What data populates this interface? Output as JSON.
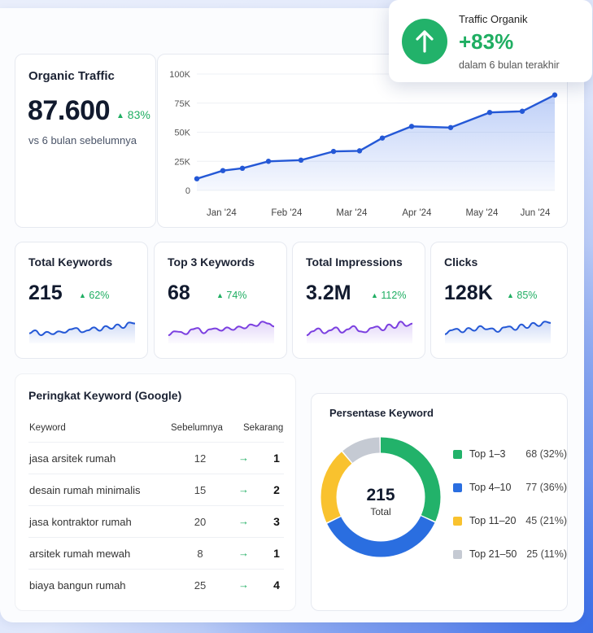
{
  "colors": {
    "accent": "#2458d6",
    "green": "#1fae62",
    "purple": "#7b3fe0",
    "yellow": "#f9c22e",
    "grey": "#c5cad3"
  },
  "popup": {
    "title": "Traffic Organik",
    "value": "+83%",
    "subtitle": "dalam 6 bulan terakhir",
    "icon": "arrow-up-icon"
  },
  "organic": {
    "title": "Organic Traffic",
    "value": "87.600",
    "change": "83%",
    "subtitle": "vs 6 bulan sebelumnya",
    "change_icon": "triangle-up-icon"
  },
  "chart_data": {
    "type": "area",
    "x_tick_labels": [
      "Jan '24",
      "Feb '24",
      "Mar '24",
      "Apr '24",
      "May '24",
      "Jun '24"
    ],
    "y_tick_labels": [
      "0",
      "25K",
      "50K",
      "75K",
      "100K"
    ],
    "ylim": [
      0,
      100000
    ],
    "grid": true,
    "series": [
      {
        "x": [
          0,
          0.4,
          0.7,
          1.1,
          1.6,
          2.1,
          2.5,
          2.85,
          3.3,
          3.9,
          4.5,
          5.0,
          5.5
        ],
        "values": [
          10000,
          17000,
          19000,
          25000,
          26000,
          33500,
          34000,
          45000,
          55000,
          54000,
          67000,
          68000,
          82000
        ]
      }
    ]
  },
  "stats": [
    {
      "title": "Total Keywords",
      "value": "215",
      "change": "62%",
      "color": "#2458d6",
      "spark": [
        0.35,
        0.5,
        0.25,
        0.42,
        0.3,
        0.45,
        0.38,
        0.55,
        0.62,
        0.4,
        0.5,
        0.65,
        0.48,
        0.72,
        0.58,
        0.8,
        0.62,
        0.9,
        0.85
      ]
    },
    {
      "title": "Top 3 Keywords",
      "value": "68",
      "change": "74%",
      "color": "#7b3fe0",
      "spark": [
        0.25,
        0.45,
        0.42,
        0.3,
        0.55,
        0.62,
        0.35,
        0.55,
        0.6,
        0.48,
        0.65,
        0.52,
        0.7,
        0.6,
        0.8,
        0.72,
        0.95,
        0.85,
        0.7
      ]
    },
    {
      "title": "Total Impressions",
      "value": "3.2M",
      "change": "112%",
      "color": "#7b3fe0",
      "spark": [
        0.25,
        0.45,
        0.6,
        0.35,
        0.5,
        0.65,
        0.38,
        0.55,
        0.72,
        0.45,
        0.4,
        0.62,
        0.7,
        0.5,
        0.8,
        0.62,
        0.95,
        0.72,
        0.85
      ]
    },
    {
      "title": "Clicks",
      "value": "128K",
      "change": "85%",
      "color": "#2458d6",
      "spark": [
        0.3,
        0.5,
        0.58,
        0.4,
        0.62,
        0.48,
        0.72,
        0.55,
        0.6,
        0.42,
        0.65,
        0.7,
        0.52,
        0.8,
        0.62,
        0.88,
        0.72,
        0.95,
        0.88
      ]
    }
  ],
  "ranking": {
    "title": "Peringkat Keyword (Google)",
    "headers": {
      "keyword": "Keyword",
      "prev": "Sebelumnya",
      "now": "Sekarang"
    },
    "rows": [
      {
        "keyword": "jasa arsitek rumah",
        "prev": "12",
        "arrow": "→",
        "now": "1"
      },
      {
        "keyword": "desain rumah minimalis",
        "prev": "15",
        "arrow": "→",
        "now": "2"
      },
      {
        "keyword": "jasa kontraktor rumah",
        "prev": "20",
        "arrow": "→",
        "now": "3"
      },
      {
        "keyword": "arsitek rumah mewah",
        "prev": "8",
        "arrow": "→",
        "now": "1"
      },
      {
        "keyword": "biaya bangun rumah",
        "prev": "25",
        "arrow": "→",
        "now": "4"
      }
    ]
  },
  "donut": {
    "title": "Persentase Keyword",
    "total": "215",
    "total_label": "Total",
    "segments": [
      {
        "label": "Top 1–3",
        "count": "68 (32%)",
        "pct": 32,
        "color": "#22b26a"
      },
      {
        "label": "Top 4–10",
        "count": "77 (36%)",
        "pct": 36,
        "color": "#2a6ee0"
      },
      {
        "label": "Top 11–20",
        "count": "45 (21%)",
        "pct": 21,
        "color": "#f9c22e"
      },
      {
        "label": "Top 21–50",
        "count": "25 (11%)",
        "pct": 11,
        "color": "#c5cad3"
      }
    ]
  }
}
